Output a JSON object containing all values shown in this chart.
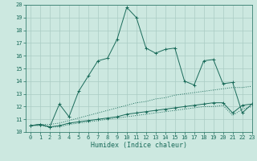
{
  "xlabel": "Humidex (Indice chaleur)",
  "bg_color": "#cce8e0",
  "grid_color": "#aaccC4",
  "line_color": "#1a6b5a",
  "xlim": [
    -0.5,
    23
  ],
  "ylim": [
    10,
    20
  ],
  "yticks": [
    10,
    11,
    12,
    13,
    14,
    15,
    16,
    17,
    18,
    19,
    20
  ],
  "xticks": [
    0,
    1,
    2,
    3,
    4,
    5,
    6,
    7,
    8,
    9,
    10,
    11,
    12,
    13,
    14,
    15,
    16,
    17,
    18,
    19,
    20,
    21,
    22,
    23
  ],
  "series": [
    {
      "x": [
        0,
        1,
        2,
        3,
        4,
        5,
        6,
        7,
        8,
        9,
        10,
        11,
        12,
        13,
        14,
        15,
        16,
        17,
        18,
        19,
        20,
        21,
        22,
        23
      ],
      "y": [
        10.5,
        10.6,
        10.4,
        12.2,
        11.2,
        13.2,
        14.4,
        15.6,
        15.8,
        17.3,
        19.8,
        19.0,
        16.6,
        16.2,
        16.5,
        16.6,
        14.0,
        13.7,
        15.6,
        15.7,
        13.8,
        13.9,
        11.5,
        12.2
      ],
      "style": "solid",
      "marker": "+"
    },
    {
      "x": [
        0,
        1,
        2,
        3,
        4,
        5,
        6,
        7,
        8,
        9,
        10,
        11,
        12,
        13,
        14,
        15,
        16,
        17,
        18,
        19,
        20,
        21,
        22,
        23
      ],
      "y": [
        10.5,
        10.6,
        10.6,
        10.7,
        10.9,
        11.1,
        11.3,
        11.5,
        11.7,
        11.9,
        12.1,
        12.3,
        12.4,
        12.6,
        12.7,
        12.9,
        13.0,
        13.1,
        13.2,
        13.3,
        13.4,
        13.5,
        13.5,
        13.6
      ],
      "style": "dotted",
      "marker": null
    },
    {
      "x": [
        0,
        1,
        2,
        3,
        4,
        5,
        6,
        7,
        8,
        9,
        10,
        11,
        12,
        13,
        14,
        15,
        16,
        17,
        18,
        19,
        20,
        21,
        22,
        23
      ],
      "y": [
        10.5,
        10.6,
        10.4,
        10.5,
        10.7,
        10.8,
        10.9,
        11.0,
        11.1,
        11.2,
        11.4,
        11.5,
        11.6,
        11.7,
        11.8,
        11.9,
        12.0,
        12.1,
        12.2,
        12.3,
        12.3,
        11.5,
        12.1,
        12.2
      ],
      "style": "solid",
      "marker": "+"
    },
    {
      "x": [
        0,
        1,
        2,
        3,
        4,
        5,
        6,
        7,
        8,
        9,
        10,
        11,
        12,
        13,
        14,
        15,
        16,
        17,
        18,
        19,
        20,
        21,
        22,
        23
      ],
      "y": [
        10.5,
        10.5,
        10.4,
        10.4,
        10.6,
        10.7,
        10.8,
        10.9,
        11.0,
        11.1,
        11.2,
        11.3,
        11.4,
        11.5,
        11.6,
        11.7,
        11.8,
        11.9,
        12.0,
        12.0,
        12.1,
        11.3,
        11.8,
        12.0
      ],
      "style": "dotted",
      "marker": null
    }
  ]
}
